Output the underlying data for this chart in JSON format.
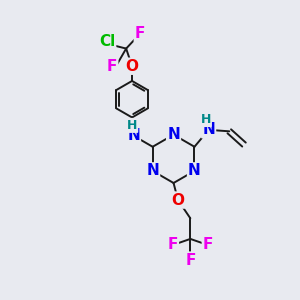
{
  "background_color": "#e8eaf0",
  "bond_color": "#1a1a1a",
  "atom_colors": {
    "N": "#0000ee",
    "O": "#ee0000",
    "F": "#ee00ee",
    "Cl": "#00bb00",
    "H": "#008888",
    "C": "#1a1a1a"
  },
  "figsize": [
    3.0,
    3.0
  ],
  "dpi": 100
}
